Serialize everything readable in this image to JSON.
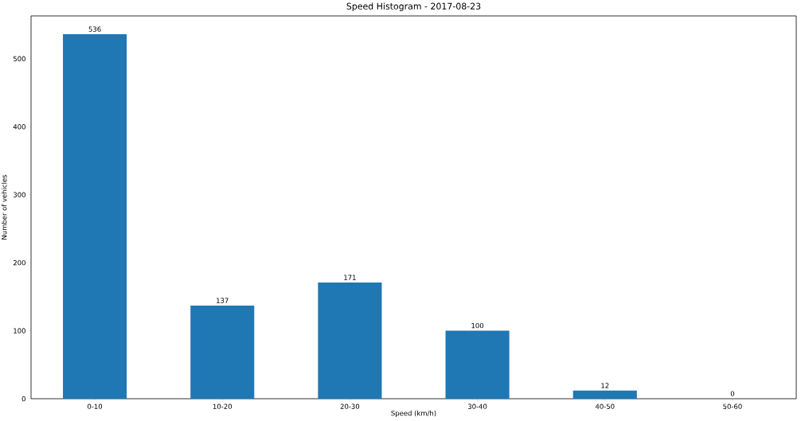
{
  "chart_data": {
    "type": "bar",
    "title": "Speed Histogram - 2017-08-23",
    "xlabel": "Speed (km/h)",
    "ylabel": "Number of vehicles",
    "categories": [
      "0-10",
      "10-20",
      "20-30",
      "30-40",
      "40-50",
      "50-60"
    ],
    "values": [
      536,
      137,
      171,
      100,
      12,
      0
    ],
    "color": "#1f77b4",
    "ylim": [
      0,
      563
    ],
    "yticks": [
      0,
      100,
      200,
      300,
      400,
      500
    ],
    "data_labels": true
  }
}
